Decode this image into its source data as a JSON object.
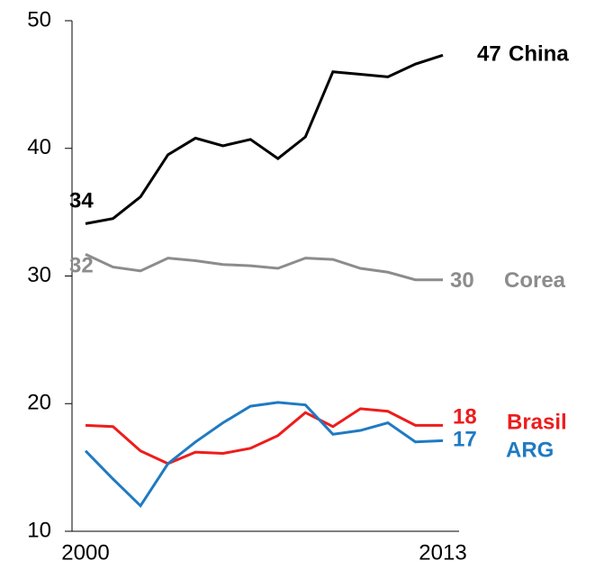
{
  "chart_data": {
    "type": "line",
    "x": [
      2000,
      2001,
      2002,
      2003,
      2004,
      2005,
      2006,
      2007,
      2008,
      2009,
      2010,
      2011,
      2012,
      2013
    ],
    "xlim": [
      2000,
      2013
    ],
    "xticks": [
      2000,
      2013
    ],
    "ylim": [
      10,
      50
    ],
    "yticks": [
      10,
      20,
      30,
      40,
      50
    ],
    "series": [
      {
        "name": "China",
        "color": "#000000",
        "values": [
          34.1,
          34.5,
          36.2,
          39.5,
          40.8,
          40.2,
          40.7,
          39.2,
          40.9,
          46.0,
          45.8,
          45.6,
          46.6,
          47.3
        ],
        "value_labels": [
          "34",
          null,
          null,
          null,
          null,
          null,
          null,
          null,
          null,
          null,
          null,
          null,
          null,
          "47"
        ]
      },
      {
        "name": "Corea",
        "color": "#8c8c8c",
        "values": [
          31.7,
          30.7,
          30.4,
          31.4,
          31.2,
          30.9,
          30.8,
          30.6,
          31.4,
          31.3,
          30.6,
          30.3,
          29.7,
          29.7
        ],
        "value_labels": [
          "32",
          null,
          null,
          null,
          null,
          null,
          null,
          null,
          null,
          null,
          null,
          null,
          null,
          "30"
        ]
      },
      {
        "name": "Brasil",
        "color": "#ee1c1c",
        "values": [
          18.3,
          18.2,
          16.3,
          15.3,
          16.2,
          16.1,
          16.5,
          17.5,
          19.3,
          18.2,
          19.6,
          19.4,
          18.3,
          18.3
        ],
        "value_labels": [
          null,
          null,
          null,
          null,
          null,
          null,
          null,
          null,
          null,
          null,
          null,
          null,
          null,
          "18"
        ]
      },
      {
        "name": "ARG",
        "color": "#1f7ac2",
        "values": [
          16.3,
          14.1,
          12.0,
          15.3,
          17.0,
          18.5,
          19.8,
          20.1,
          19.9,
          17.6,
          17.9,
          18.5,
          17.0,
          17.1
        ],
        "value_labels": [
          null,
          null,
          null,
          null,
          null,
          null,
          null,
          null,
          null,
          null,
          null,
          null,
          null,
          "17"
        ]
      }
    ]
  }
}
